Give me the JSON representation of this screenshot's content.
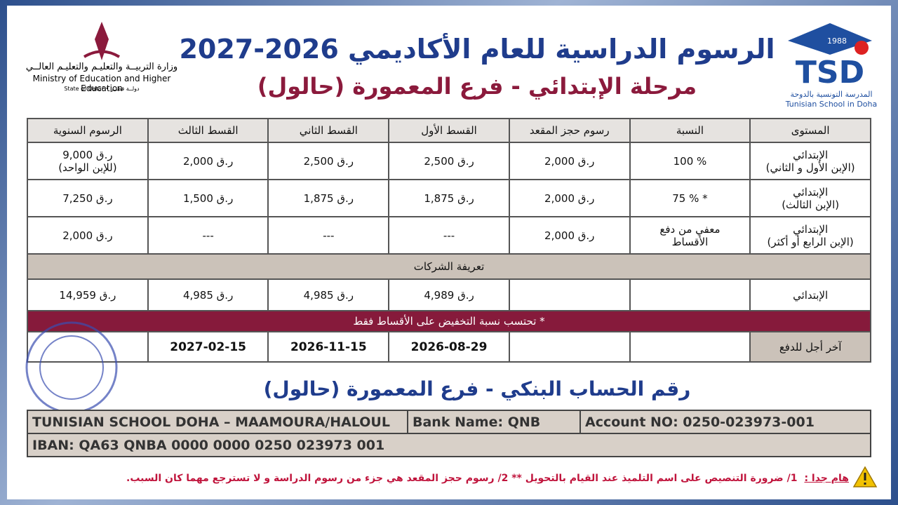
{
  "header": {
    "title": "الرسوم الدراسية للعام الأكاديمي 2026-2027",
    "subtitle": "مرحلة الإبتدائي - فرع المعمورة (حالول)",
    "ministry": {
      "arabic": "وزارة التربيــة والتعليـم والتعليـم العالــي",
      "english": "Ministry of Education and Higher Education",
      "state": "State of Qatar • دولــة قطــر"
    },
    "school": {
      "year": "1988",
      "abbr": "TSD",
      "arabic": "المدرسة التونسية بالدوحة",
      "english": "Tunisian School in Doha"
    }
  },
  "table": {
    "columns": {
      "level": "المستوى",
      "ratio": "النسبة",
      "reservation": "رسوم حجز المقعد",
      "first": "القسط الأول",
      "second": "القسط الثاني",
      "third": "القسط الثالث",
      "annual": "الرسوم السنوية"
    },
    "rows": [
      {
        "level": "الإبتدائي\n(الإبن الأول و الثاني)",
        "ratio": "100 %",
        "reservation": "ر.ق 2,000",
        "first": "ر.ق 2,500",
        "second": "ر.ق 2,500",
        "third": "ر.ق 2,000",
        "annual": "ر.ق 9,000\n(للإبن الواحد)"
      },
      {
        "level": "الإبتدائي\n(الإبن الثالث)",
        "ratio": "75 % *",
        "reservation": "ر.ق 2,000",
        "first": "ر.ق 1,875",
        "second": "ر.ق 1,875",
        "third": "ر.ق 1,500",
        "annual": "ر.ق 7,250"
      },
      {
        "level": "الإبتدائي\n(الإبن الرابع أو أكثر)",
        "ratio": "معفي من دفع\nالأقساط",
        "reservation": "ر.ق 2,000",
        "first": "---",
        "second": "---",
        "third": "---",
        "annual": "ر.ق 2,000"
      }
    ],
    "corporate_title": "تعريفة الشركات",
    "corporate_row": {
      "level": "الإبتدائي",
      "first": "ر.ق 4,989",
      "second": "ر.ق 4,985",
      "third": "ر.ق 4,985",
      "annual": "ر.ق 14,959"
    },
    "note": "* تحتسب نسبة التخفيض على الأقساط فقط",
    "deadline_row": {
      "level": "آخر أجل للدفع",
      "first": "2026-08-29",
      "second": "2026-11-15",
      "third": "2027-02-15"
    }
  },
  "bank": {
    "title": "رقم الحساب البنكي - فرع المعمورة (حالول)",
    "account_name": "TUNISIAN SCHOOL DOHA – MAAMOURA/HALOUL",
    "bank_name": "Bank Name: QNB",
    "account_no": "Account NO: 0250-023973-001",
    "iban": "IBAN: QA63 QNBA 0000 0000 0250 023973 001"
  },
  "notice": {
    "label": "هام جدا :",
    "text": "1/ ضرورة التنصيص على اسم التلميذ عند القيام بالتحويل  **  2/ رسوم حجز المقعد هي جزء من رسوم الدراسة و لا تسترجع مهما كان السبب."
  }
}
